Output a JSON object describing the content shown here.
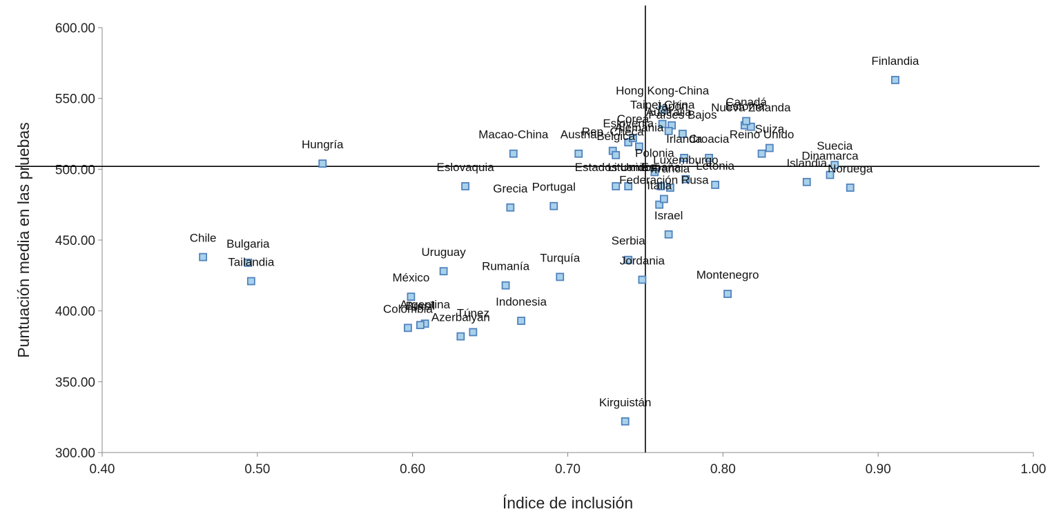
{
  "chart_data": {
    "type": "scatter",
    "xlabel": "Índice de inclusión",
    "ylabel": "Puntuación media en las pruebas",
    "xlim": [
      0.4,
      1.0
    ],
    "ylim": [
      300,
      600
    ],
    "x_ticks": [
      "0.40",
      "0.50",
      "0.60",
      "0.70",
      "0.80",
      "0.90",
      "1.00"
    ],
    "y_ticks": [
      "300.00",
      "350.00",
      "400.00",
      "450.00",
      "500.00",
      "550.00",
      "600.00"
    ],
    "reference_lines": {
      "vertical_x": 0.75,
      "horizontal_y": 502
    },
    "legend": "none",
    "grid": false,
    "marker_color": "#a9d1ea",
    "marker_edge_color": "#4f81bd",
    "points": [
      {
        "label": "Finlandia",
        "x": 0.911,
        "y": 563
      },
      {
        "label": "Hungría",
        "x": 0.542,
        "y": 504
      },
      {
        "label": "Chile",
        "x": 0.465,
        "y": 438
      },
      {
        "label": "Bulgaria",
        "x": 0.494,
        "y": 434
      },
      {
        "label": "Tailandia",
        "x": 0.496,
        "y": 421
      },
      {
        "label": "Eslovaquia",
        "x": 0.634,
        "y": 488
      },
      {
        "label": "Macao-China",
        "x": 0.665,
        "y": 511
      },
      {
        "label": "Grecia",
        "x": 0.663,
        "y": 473
      },
      {
        "label": "Portugal",
        "x": 0.691,
        "y": 474
      },
      {
        "label": "Uruguay",
        "x": 0.62,
        "y": 428
      },
      {
        "label": "México",
        "x": 0.599,
        "y": 410
      },
      {
        "label": "Rumanía",
        "x": 0.66,
        "y": 418
      },
      {
        "label": "Turquía",
        "x": 0.695,
        "y": 424
      },
      {
        "label": "Indonesia",
        "x": 0.67,
        "y": 393
      },
      {
        "label": "Argentina",
        "x": 0.608,
        "y": 391
      },
      {
        "label": "Brasil",
        "x": 0.605,
        "y": 390
      },
      {
        "label": "Colombia",
        "x": 0.597,
        "y": 388
      },
      {
        "label": "Túnez",
        "x": 0.639,
        "y": 385
      },
      {
        "label": "Azerbaiyán",
        "x": 0.631,
        "y": 382
      },
      {
        "label": "Kirguistán",
        "x": 0.737,
        "y": 322
      },
      {
        "label": "Serbia",
        "x": 0.739,
        "y": 436
      },
      {
        "label": "Jordania",
        "x": 0.748,
        "y": 422
      },
      {
        "label": "Israel",
        "x": 0.765,
        "y": 454
      },
      {
        "label": "Montenegro",
        "x": 0.803,
        "y": 412
      },
      {
        "label": "Italia",
        "x": 0.759,
        "y": 475
      },
      {
        "label": "Federación Rusa",
        "x": 0.762,
        "y": 479
      },
      {
        "label": "Austria",
        "x": 0.707,
        "y": 511
      },
      {
        "label": "Rep. Checa",
        "x": 0.729,
        "y": 513
      },
      {
        "label": "Bélgica",
        "x": 0.731,
        "y": 510
      },
      {
        "label": "Eslovenia",
        "x": 0.739,
        "y": 519
      },
      {
        "label": "Corea",
        "x": 0.742,
        "y": 522
      },
      {
        "label": "Alemania",
        "x": 0.746,
        "y": 516
      },
      {
        "label": "Hong Kong-China",
        "x": 0.761,
        "y": 542
      },
      {
        "label": "Taipei China",
        "x": 0.761,
        "y": 532
      },
      {
        "label": "Japón",
        "x": 0.767,
        "y": 531
      },
      {
        "label": "Australia",
        "x": 0.765,
        "y": 527
      },
      {
        "label": "Países Bajos",
        "x": 0.774,
        "y": 525
      },
      {
        "label": "Estonia",
        "x": 0.814,
        "y": 531
      },
      {
        "label": "Nueva Zelanda",
        "x": 0.818,
        "y": 530
      },
      {
        "label": "Canadá",
        "x": 0.815,
        "y": 534
      },
      {
        "label": "Irlanda",
        "x": 0.775,
        "y": 508
      },
      {
        "label": "Reino Unido",
        "x": 0.825,
        "y": 511
      },
      {
        "label": "Suiza",
        "x": 0.83,
        "y": 515
      },
      {
        "label": "Polonia",
        "x": 0.756,
        "y": 498
      },
      {
        "label": "Croacia",
        "x": 0.791,
        "y": 508
      },
      {
        "label": "Letonia",
        "x": 0.795,
        "y": 489
      },
      {
        "label": "Luxemburgo",
        "x": 0.776,
        "y": 493
      },
      {
        "label": "Estados Unidos",
        "x": 0.731,
        "y": 488
      },
      {
        "label": "Lituania",
        "x": 0.739,
        "y": 488
      },
      {
        "label": "España",
        "x": 0.76,
        "y": 488
      },
      {
        "label": "Francia",
        "x": 0.766,
        "y": 487
      },
      {
        "label": "Islandia",
        "x": 0.854,
        "y": 491
      },
      {
        "label": "Dinamarca",
        "x": 0.869,
        "y": 496
      },
      {
        "label": "Suecia",
        "x": 0.872,
        "y": 503
      },
      {
        "label": "Noruega",
        "x": 0.882,
        "y": 487
      }
    ],
    "visible_labels": [
      {
        "text": "Finlandia",
        "x": 0.911,
        "y": 563
      },
      {
        "text": "Hungría",
        "x": 0.542,
        "y": 504
      },
      {
        "text": "Chile",
        "x": 0.465,
        "y": 438
      },
      {
        "text": "Bulgaria",
        "x": 0.494,
        "y": 434
      },
      {
        "text": "Tailandia",
        "x": 0.496,
        "y": 421
      },
      {
        "text": "Eslovaquia",
        "x": 0.634,
        "y": 488
      },
      {
        "text": "Macao-China",
        "x": 0.665,
        "y": 511
      },
      {
        "text": "Grecia",
        "x": 0.663,
        "y": 473
      },
      {
        "text": "Portugal",
        "x": 0.691,
        "y": 474
      },
      {
        "text": "Uruguay",
        "x": 0.62,
        "y": 428
      },
      {
        "text": "México",
        "x": 0.599,
        "y": 410
      },
      {
        "text": "Rumanía",
        "x": 0.66,
        "y": 418
      },
      {
        "text": "Turquía",
        "x": 0.695,
        "y": 424
      },
      {
        "text": "Indonesia",
        "x": 0.67,
        "y": 393
      },
      {
        "text": "Argentina",
        "x": 0.608,
        "y": 391
      },
      {
        "text": "Brasil",
        "x": 0.605,
        "y": 390
      },
      {
        "text": "Colombia",
        "x": 0.597,
        "y": 388
      },
      {
        "text": "Túnez",
        "x": 0.639,
        "y": 385
      },
      {
        "text": "Azerbaiyán",
        "x": 0.631,
        "y": 382
      },
      {
        "text": "Kirguistán",
        "x": 0.737,
        "y": 322
      },
      {
        "text": "Serbia",
        "x": 0.739,
        "y": 436
      },
      {
        "text": "Jordania",
        "x": 0.748,
        "y": 422
      },
      {
        "text": "Israel",
        "x": 0.765,
        "y": 454
      },
      {
        "text": "Montenegro",
        "x": 0.803,
        "y": 412
      },
      {
        "text": "Italia",
        "x": 0.759,
        "y": 475
      },
      {
        "text": "Federación Rusa",
        "x": 0.762,
        "y": 479
      },
      {
        "text": "Austria",
        "x": 0.707,
        "y": 511
      },
      {
        "text": "Rep. Checa",
        "x": 0.729,
        "y": 513
      },
      {
        "text": "Bélgica",
        "x": 0.731,
        "y": 510
      },
      {
        "text": "Eslovenia",
        "x": 0.739,
        "y": 519
      },
      {
        "text": "Corea",
        "x": 0.742,
        "y": 522
      },
      {
        "text": "Alemania",
        "x": 0.746,
        "y": 516
      },
      {
        "text": "Hong Kong-China",
        "x": 0.761,
        "y": 542
      },
      {
        "text": "Taipei China",
        "x": 0.761,
        "y": 532
      },
      {
        "text": "Japón",
        "x": 0.767,
        "y": 531
      },
      {
        "text": "Australia",
        "x": 0.765,
        "y": 527
      },
      {
        "text": "Países Bajos",
        "x": 0.774,
        "y": 525
      },
      {
        "text": "Estonia",
        "x": 0.814,
        "y": 531
      },
      {
        "text": "Nueva Zelanda",
        "x": 0.818,
        "y": 530
      },
      {
        "text": "Canadá",
        "x": 0.815,
        "y": 534
      },
      {
        "text": "Irlanda",
        "x": 0.775,
        "y": 508
      },
      {
        "text": "Reino Unido",
        "x": 0.825,
        "y": 511
      },
      {
        "text": "Suiza",
        "x": 0.83,
        "y": 515
      },
      {
        "text": "Polonia",
        "x": 0.756,
        "y": 498
      },
      {
        "text": "Croacia",
        "x": 0.791,
        "y": 508
      },
      {
        "text": "Letonia",
        "x": 0.795,
        "y": 489
      },
      {
        "text": "Luxemburgo",
        "x": 0.776,
        "y": 493
      },
      {
        "text": "Estados Unidos",
        "x": 0.731,
        "y": 488
      },
      {
        "text": "Lituania",
        "x": 0.739,
        "y": 488
      },
      {
        "text": "España",
        "x": 0.76,
        "y": 488
      },
      {
        "text": "Francia",
        "x": 0.766,
        "y": 487
      },
      {
        "text": "Islandia",
        "x": 0.854,
        "y": 491
      },
      {
        "text": "Dinamarca",
        "x": 0.869,
        "y": 496
      },
      {
        "text": "Suecia",
        "x": 0.872,
        "y": 503
      },
      {
        "text": "Noruega",
        "x": 0.882,
        "y": 487
      }
    ]
  }
}
